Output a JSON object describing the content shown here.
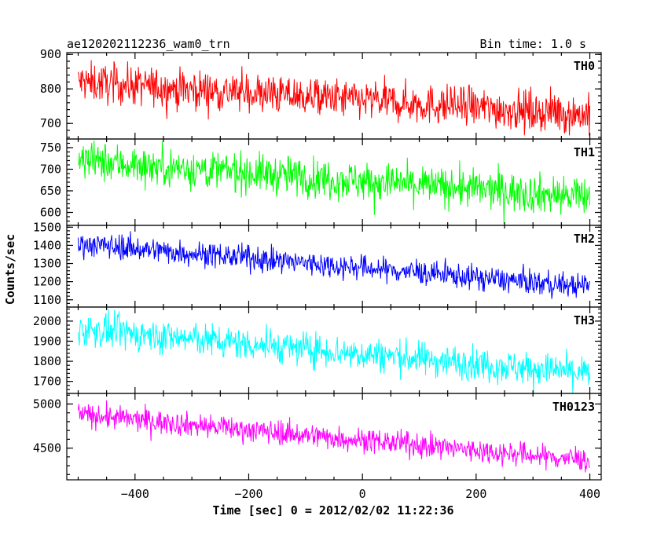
{
  "chart_data": {
    "type": "line",
    "title": "ae120202112236_wam0_trn",
    "subtitle": "Bin time: 1.0 s",
    "xlabel": "Time [sec] 0 = 2012/02/02 11:22:36",
    "ylabel": "Counts/sec",
    "xlim": [
      -520,
      420
    ],
    "x_ticks": [
      -400,
      -200,
      0,
      200,
      400
    ],
    "x_tick_labels": [
      "−400",
      "−200",
      "0",
      "200",
      "400"
    ],
    "x_range": [
      -500,
      400
    ],
    "bin_time_s": 1.0,
    "grid": false,
    "panels": [
      {
        "name": "TH0",
        "color": "#ff0000",
        "ylim": [
          655,
          905
        ],
        "ticks": [
          700,
          800,
          900
        ],
        "start": 820,
        "end": 725,
        "noise": 38
      },
      {
        "name": "TH1",
        "color": "#00ff00",
        "ylim": [
          570,
          770
        ],
        "ticks": [
          600,
          650,
          700,
          750
        ],
        "start": 720,
        "end": 635,
        "noise": 30
      },
      {
        "name": "TH2",
        "color": "#0000ff",
        "ylim": [
          1060,
          1510
        ],
        "ticks": [
          1100,
          1200,
          1300,
          1400,
          1500
        ],
        "start": 1410,
        "end": 1170,
        "noise": 45
      },
      {
        "name": "TH3",
        "color": "#00ffff",
        "ylim": [
          1640,
          2070
        ],
        "ticks": [
          1700,
          1800,
          1900,
          2000
        ],
        "start": 1960,
        "end": 1740,
        "noise": 55
      },
      {
        "name": "TH0123",
        "color": "#ff00ff",
        "ylim": [
          4140,
          5120
        ],
        "ticks": [
          4500,
          5000
        ],
        "start": 4880,
        "end": 4360,
        "noise": 90
      }
    ]
  }
}
